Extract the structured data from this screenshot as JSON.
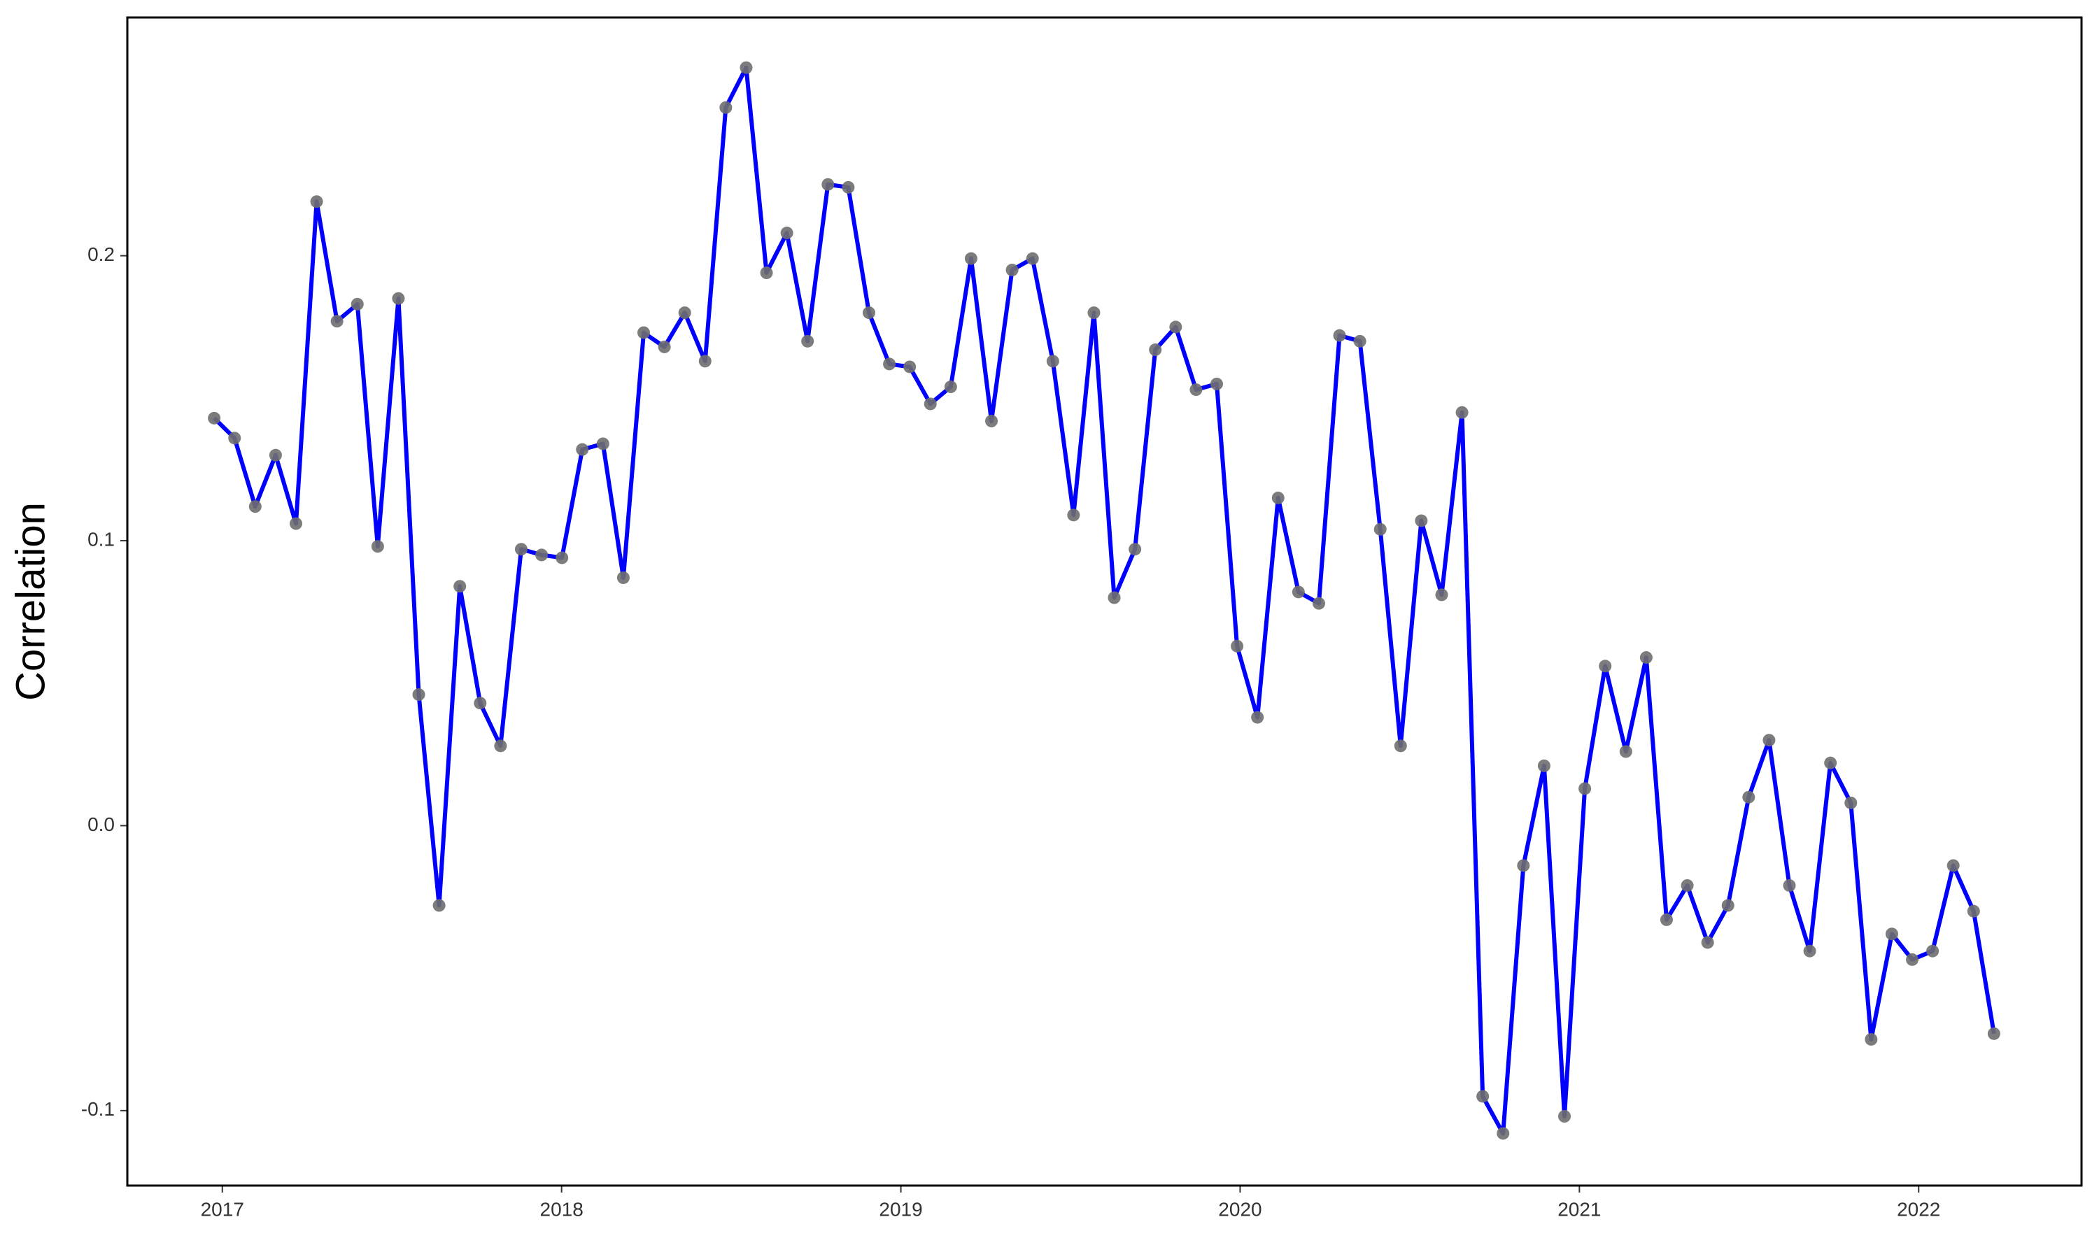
{
  "chart_data": {
    "type": "line",
    "ylabel": "Correlation",
    "x": [
      2016.976,
      2017.036,
      2017.097,
      2017.157,
      2017.217,
      2017.278,
      2017.338,
      2017.398,
      2017.458,
      2017.519,
      2017.579,
      2017.639,
      2017.7,
      2017.76,
      2017.82,
      2017.881,
      2017.941,
      2018.001,
      2018.061,
      2018.122,
      2018.182,
      2018.242,
      2018.303,
      2018.363,
      2018.423,
      2018.484,
      2018.544,
      2018.604,
      2018.664,
      2018.725,
      2018.785,
      2018.845,
      2018.906,
      2018.966,
      2019.026,
      2019.087,
      2019.147,
      2019.207,
      2019.267,
      2019.328,
      2019.388,
      2019.448,
      2019.509,
      2019.569,
      2019.629,
      2019.69,
      2019.75,
      2019.81,
      2019.87,
      2019.931,
      2019.991,
      2020.051,
      2020.112,
      2020.172,
      2020.232,
      2020.293,
      2020.353,
      2020.413,
      2020.473,
      2020.534,
      2020.594,
      2020.654,
      2020.715,
      2020.775,
      2020.835,
      2020.896,
      2020.956,
      2021.016,
      2021.076,
      2021.137,
      2021.197,
      2021.257,
      2021.318,
      2021.378,
      2021.438,
      2021.499,
      2021.559,
      2021.619,
      2021.679,
      2021.74,
      2021.8,
      2021.86,
      2021.921,
      2021.981,
      2022.041,
      2022.102,
      2022.162,
      2022.222
    ],
    "values": [
      0.143,
      0.136,
      0.112,
      0.13,
      0.106,
      0.219,
      0.177,
      0.183,
      0.098,
      0.185,
      0.046,
      -0.028,
      0.084,
      0.043,
      0.028,
      0.097,
      0.095,
      0.094,
      0.132,
      0.134,
      0.087,
      0.173,
      0.168,
      0.18,
      0.163,
      0.252,
      0.266,
      0.194,
      0.208,
      0.17,
      0.225,
      0.224,
      0.18,
      0.162,
      0.161,
      0.148,
      0.154,
      0.199,
      0.142,
      0.195,
      0.199,
      0.163,
      0.109,
      0.18,
      0.08,
      0.097,
      0.167,
      0.175,
      0.153,
      0.155,
      0.063,
      0.038,
      0.115,
      0.082,
      0.078,
      0.172,
      0.17,
      0.104,
      0.028,
      0.107,
      0.081,
      0.145,
      -0.095,
      -0.108,
      -0.014,
      0.021,
      -0.102,
      0.013,
      0.056,
      0.026,
      0.059,
      -0.033,
      -0.021,
      -0.041,
      -0.028,
      0.01,
      0.03,
      -0.021,
      -0.044,
      0.022,
      0.008,
      -0.075,
      -0.038,
      -0.047,
      -0.044,
      -0.014,
      -0.03,
      -0.073
    ],
    "color": "#0000ff",
    "marker_color": "#6e6e6e",
    "xlim": [
      2016.72,
      2022.48
    ],
    "xticks": [
      2017,
      2018,
      2019,
      2020,
      2021,
      2022
    ],
    "ylim": [
      -0.1263,
      0.2836
    ],
    "yticks": [
      -0.1,
      {
        "value": 0,
        "label": "0.0"
      },
      0.1,
      0.2
    ]
  }
}
